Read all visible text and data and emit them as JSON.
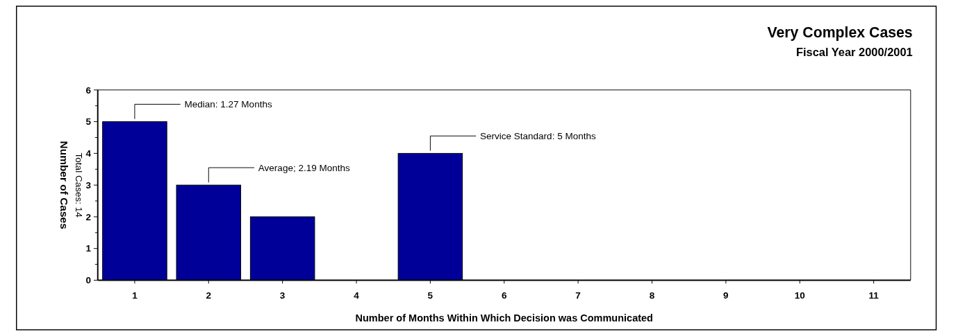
{
  "chart_data": {
    "type": "bar",
    "title": "Very Complex Cases",
    "subtitle": "Fiscal Year 2000/2001",
    "xlabel": "Number of Months Within Which Decision was Communicated",
    "ylabel": "Number of Cases",
    "categories": [
      "1",
      "2",
      "3",
      "4",
      "5",
      "6",
      "7",
      "8",
      "9",
      "10",
      "11"
    ],
    "values": [
      5,
      3,
      2,
      0,
      4,
      0,
      0,
      0,
      0,
      0,
      0
    ],
    "color": "#000099",
    "ylim": [
      0,
      6
    ],
    "yticks": [
      0,
      {
        "value": 0.5,
        "label": null
      },
      1,
      {
        "value": 1.5,
        "label": null
      },
      2,
      {
        "value": 2.5,
        "label": null
      },
      3,
      {
        "value": 3.5,
        "label": null
      },
      4,
      {
        "value": 4.5,
        "label": null
      },
      5,
      {
        "value": 5.5,
        "label": null
      },
      6
    ],
    "grid": false,
    "annotations": [
      {
        "text": "Median:  1.27 Months",
        "x": "1",
        "y": 5
      },
      {
        "text": "Average;  2.19 Months",
        "x": "2",
        "y": 3
      },
      {
        "text": "Service Standard:  5 Months",
        "x": "5",
        "y": 4
      },
      "Total Cases:  14"
    ]
  }
}
